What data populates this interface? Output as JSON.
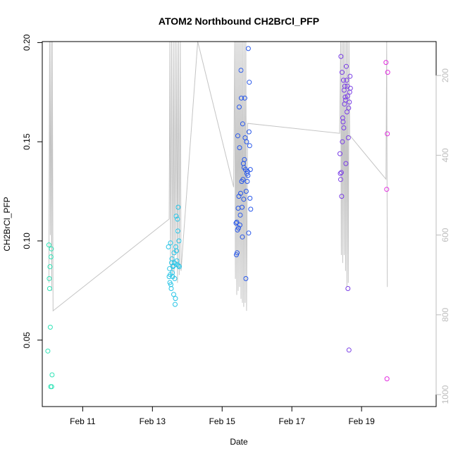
{
  "chart_data": {
    "type": "scatter",
    "title": "ATOM2 Northbound CH2BrCl_PFP",
    "xlabel": "Date",
    "ylabel": "CH2BrCl_PFP",
    "x_range_days": [
      9.84,
      21.14
    ],
    "ylim": [
      0.0165,
      0.2005
    ],
    "x_ticks": [
      {
        "day": 11,
        "label": "Feb 11"
      },
      {
        "day": 13,
        "label": "Feb 13"
      },
      {
        "day": 15,
        "label": "Feb 15"
      },
      {
        "day": 17,
        "label": "Feb 17"
      },
      {
        "day": 19,
        "label": "Feb 19"
      }
    ],
    "y_ticks": [
      {
        "value": 0.05,
        "label": "0.05"
      },
      {
        "value": 0.1,
        "label": "0.10"
      },
      {
        "value": 0.15,
        "label": "0.15"
      },
      {
        "value": 0.2,
        "label": "0.20"
      }
    ],
    "secondary_axis": {
      "label": "",
      "range": [
        1030,
        115
      ],
      "ticks": [
        {
          "value": 200,
          "label": "200"
        },
        {
          "value": 400,
          "label": "400"
        },
        {
          "value": 600,
          "label": "600"
        },
        {
          "value": 800,
          "label": "800"
        },
        {
          "value": 1000,
          "label": "1000"
        }
      ],
      "color": "#bdbdbd"
    },
    "altitude_profile": [
      [
        10.03,
        720
      ],
      [
        10.05,
        20
      ],
      [
        10.07,
        600
      ],
      [
        10.09,
        20
      ],
      [
        10.11,
        740
      ],
      [
        10.13,
        20
      ],
      [
        10.15,
        790
      ],
      [
        13.48,
        560
      ],
      [
        13.5,
        20
      ],
      [
        13.52,
        680
      ],
      [
        13.55,
        20
      ],
      [
        13.57,
        700
      ],
      [
        13.6,
        20
      ],
      [
        13.62,
        710
      ],
      [
        13.65,
        20
      ],
      [
        13.67,
        650
      ],
      [
        13.7,
        20
      ],
      [
        13.72,
        720
      ],
      [
        13.75,
        20
      ],
      [
        13.77,
        700
      ],
      [
        13.8,
        20
      ],
      [
        13.82,
        690
      ],
      [
        14.3,
        20
      ],
      [
        15.33,
        480
      ],
      [
        15.36,
        20
      ],
      [
        15.38,
        710
      ],
      [
        15.4,
        20
      ],
      [
        15.42,
        750
      ],
      [
        15.44,
        20
      ],
      [
        15.46,
        740
      ],
      [
        15.48,
        20
      ],
      [
        15.5,
        730
      ],
      [
        15.52,
        20
      ],
      [
        15.54,
        760
      ],
      [
        15.56,
        20
      ],
      [
        15.58,
        770
      ],
      [
        15.6,
        20
      ],
      [
        15.62,
        780
      ],
      [
        15.64,
        20
      ],
      [
        15.66,
        770
      ],
      [
        15.68,
        20
      ],
      [
        15.7,
        790
      ],
      [
        15.73,
        320
      ],
      [
        18.37,
        345
      ],
      [
        18.4,
        20
      ],
      [
        18.42,
        650
      ],
      [
        18.44,
        20
      ],
      [
        18.46,
        670
      ],
      [
        18.48,
        20
      ],
      [
        18.5,
        650
      ],
      [
        18.52,
        20
      ],
      [
        18.54,
        690
      ],
      [
        18.56,
        20
      ],
      [
        18.58,
        730
      ],
      [
        18.6,
        20
      ],
      [
        18.62,
        720
      ],
      [
        18.64,
        20
      ],
      [
        18.66,
        350
      ],
      [
        19.7,
        460
      ],
      [
        19.72,
        20
      ],
      [
        19.74,
        730
      ]
    ],
    "series": [
      {
        "color": "#2ee3b6",
        "points": [
          [
            10.0,
            0.0445
          ],
          [
            10.03,
            0.098
          ],
          [
            10.04,
            0.081
          ],
          [
            10.05,
            0.076
          ],
          [
            10.06,
            0.087
          ],
          [
            10.07,
            0.0565
          ],
          [
            10.08,
            0.0265
          ],
          [
            10.09,
            0.092
          ],
          [
            10.1,
            0.096
          ],
          [
            10.11,
            0.0265
          ],
          [
            10.12,
            0.0325
          ]
        ]
      },
      {
        "color": "#27c4e6",
        "points": [
          [
            13.46,
            0.097
          ],
          [
            13.48,
            0.082
          ],
          [
            13.49,
            0.086
          ],
          [
            13.5,
            0.079
          ],
          [
            13.51,
            0.083
          ],
          [
            13.52,
            0.099
          ],
          [
            13.53,
            0.078
          ],
          [
            13.54,
            0.076
          ],
          [
            13.55,
            0.089
          ],
          [
            13.56,
            0.091
          ],
          [
            13.57,
            0.084
          ],
          [
            13.58,
            0.082
          ],
          [
            13.59,
            0.087
          ],
          [
            13.6,
            0.0875
          ],
          [
            13.61,
            0.073
          ],
          [
            13.62,
            0.094
          ],
          [
            13.63,
            0.089
          ],
          [
            13.64,
            0.081
          ],
          [
            13.65,
            0.068
          ],
          [
            13.66,
            0.071
          ],
          [
            13.67,
            0.097
          ],
          [
            13.68,
            0.1125
          ],
          [
            13.69,
            0.095
          ],
          [
            13.7,
            0.09
          ],
          [
            13.71,
            0.088
          ],
          [
            13.72,
            0.111
          ],
          [
            13.73,
            0.105
          ],
          [
            13.74,
            0.117
          ],
          [
            13.75,
            0.0875
          ],
          [
            13.76,
            0.1
          ],
          [
            13.77,
            0.087
          ]
        ]
      },
      {
        "color": "#2757ea",
        "points": [
          [
            15.4,
            0.109
          ],
          [
            15.41,
            0.093
          ],
          [
            15.42,
            0.1095
          ],
          [
            15.43,
            0.094
          ],
          [
            15.44,
            0.1055
          ],
          [
            15.45,
            0.153
          ],
          [
            15.46,
            0.1165
          ],
          [
            15.47,
            0.1065
          ],
          [
            15.48,
            0.1225
          ],
          [
            15.49,
            0.1675
          ],
          [
            15.5,
            0.147
          ],
          [
            15.51,
            0.108
          ],
          [
            15.52,
            0.113
          ],
          [
            15.53,
            0.124
          ],
          [
            15.54,
            0.186
          ],
          [
            15.55,
            0.172
          ],
          [
            15.56,
            0.13
          ],
          [
            15.57,
            0.117
          ],
          [
            15.58,
            0.102
          ],
          [
            15.59,
            0.159
          ],
          [
            15.6,
            0.131
          ],
          [
            15.61,
            0.139
          ],
          [
            15.62,
            0.121
          ],
          [
            15.63,
            0.137
          ],
          [
            15.64,
            0.141
          ],
          [
            15.65,
            0.172
          ],
          [
            15.66,
            0.152
          ],
          [
            15.67,
            0.136
          ],
          [
            15.68,
            0.081
          ],
          [
            15.69,
            0.125
          ],
          [
            15.7,
            0.15
          ],
          [
            15.71,
            0.134
          ],
          [
            15.72,
            0.13
          ],
          [
            15.73,
            0.135
          ],
          [
            15.74,
            0.133
          ],
          [
            15.75,
            0.197
          ],
          [
            15.76,
            0.104
          ],
          [
            15.77,
            0.155
          ],
          [
            15.78,
            0.18
          ],
          [
            15.79,
            0.148
          ],
          [
            15.8,
            0.1215
          ],
          [
            15.81,
            0.136
          ],
          [
            15.82,
            0.116
          ]
        ]
      },
      {
        "color": "#7a3ee6",
        "points": [
          [
            18.38,
            0.144
          ],
          [
            18.39,
            0.134
          ],
          [
            18.4,
            0.131
          ],
          [
            18.41,
            0.193
          ],
          [
            18.42,
            0.1345
          ],
          [
            18.43,
            0.1225
          ],
          [
            18.44,
            0.185
          ],
          [
            18.45,
            0.15
          ],
          [
            18.46,
            0.162
          ],
          [
            18.47,
            0.16
          ],
          [
            18.48,
            0.181
          ],
          [
            18.49,
            0.157
          ],
          [
            18.5,
            0.176
          ],
          [
            18.51,
            0.169
          ],
          [
            18.52,
            0.178
          ],
          [
            18.53,
            0.1725
          ],
          [
            18.54,
            0.171
          ],
          [
            18.55,
            0.139
          ],
          [
            18.56,
            0.188
          ],
          [
            18.57,
            0.181
          ],
          [
            18.58,
            0.165
          ],
          [
            18.59,
            0.178
          ],
          [
            18.6,
            0.173
          ],
          [
            18.61,
            0.076
          ],
          [
            18.62,
            0.152
          ],
          [
            18.63,
            0.167
          ],
          [
            18.64,
            0.045
          ],
          [
            18.65,
            0.17
          ],
          [
            18.66,
            0.175
          ],
          [
            18.67,
            0.183
          ],
          [
            18.68,
            0.177
          ]
        ]
      },
      {
        "color": "#e22ee0",
        "points": [
          [
            19.7,
            0.19
          ],
          [
            19.72,
            0.126
          ],
          [
            19.73,
            0.0305
          ],
          [
            19.74,
            0.154
          ],
          [
            19.75,
            0.185
          ]
        ]
      }
    ]
  }
}
